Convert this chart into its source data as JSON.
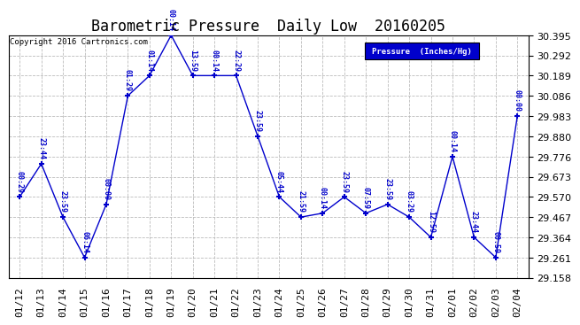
{
  "title": "Barometric Pressure  Daily Low  20160205",
  "copyright": "Copyright 2016 Cartronics.com",
  "legend_label": "Pressure  (Inches/Hg)",
  "background_color": "#ffffff",
  "line_color": "#0000cc",
  "grid_color": "#bbbbbb",
  "dates": [
    "01/12",
    "01/13",
    "01/14",
    "01/15",
    "01/16",
    "01/17",
    "01/18",
    "01/19",
    "01/20",
    "01/21",
    "01/22",
    "01/23",
    "01/24",
    "01/25",
    "01/26",
    "01/27",
    "01/28",
    "01/29",
    "01/30",
    "01/31",
    "02/01",
    "02/02",
    "02/03",
    "02/04"
  ],
  "values": [
    29.57,
    29.739,
    29.467,
    29.261,
    29.532,
    30.086,
    30.189,
    30.395,
    30.189,
    30.189,
    30.189,
    29.88,
    29.57,
    29.467,
    29.487,
    29.57,
    29.487,
    29.532,
    29.467,
    29.364,
    29.776,
    29.364,
    29.261,
    29.983
  ],
  "times": [
    "00:29",
    "23:44",
    "23:59",
    "06:14",
    "00:00",
    "01:29",
    "01:14",
    "00:14",
    "13:59",
    "00:14",
    "22:29",
    "23:59",
    "05:44",
    "21:59",
    "00:14",
    "23:59",
    "07:59",
    "23:59",
    "03:29",
    "12:59",
    "00:14",
    "23:44",
    "00:59",
    "00:00"
  ],
  "ylim_min": 29.158,
  "ylim_max": 30.395,
  "yticks": [
    29.158,
    29.261,
    29.364,
    29.467,
    29.57,
    29.673,
    29.776,
    29.88,
    29.983,
    30.086,
    30.189,
    30.292,
    30.395
  ],
  "title_fontsize": 12,
  "tick_fontsize": 8,
  "annot_fontsize": 6,
  "marker": "+",
  "marker_size": 5,
  "linewidth": 1.0
}
